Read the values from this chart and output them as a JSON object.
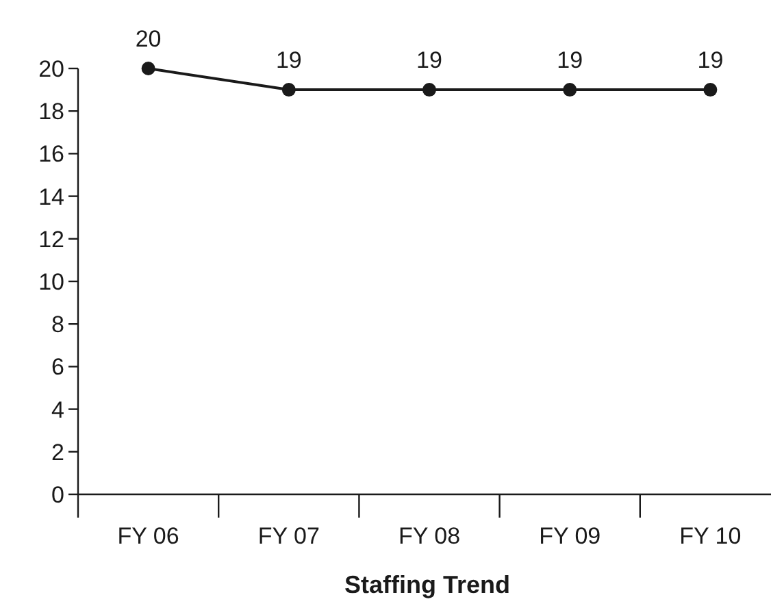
{
  "chart_data": {
    "type": "line",
    "title": "Staffing Trend",
    "categories": [
      "FY 06",
      "FY 07",
      "FY 08",
      "FY 09",
      "FY 10"
    ],
    "series": [
      {
        "color": "#1a1a1a",
        "values": [
          20,
          19,
          19,
          19,
          19
        ]
      }
    ],
    "ylim": [
      0,
      20
    ],
    "yticks": [
      0,
      2,
      4,
      6,
      8,
      10,
      12,
      14,
      16,
      18,
      20
    ],
    "data_labels": true,
    "marker": "circle",
    "line_style": "solid"
  }
}
